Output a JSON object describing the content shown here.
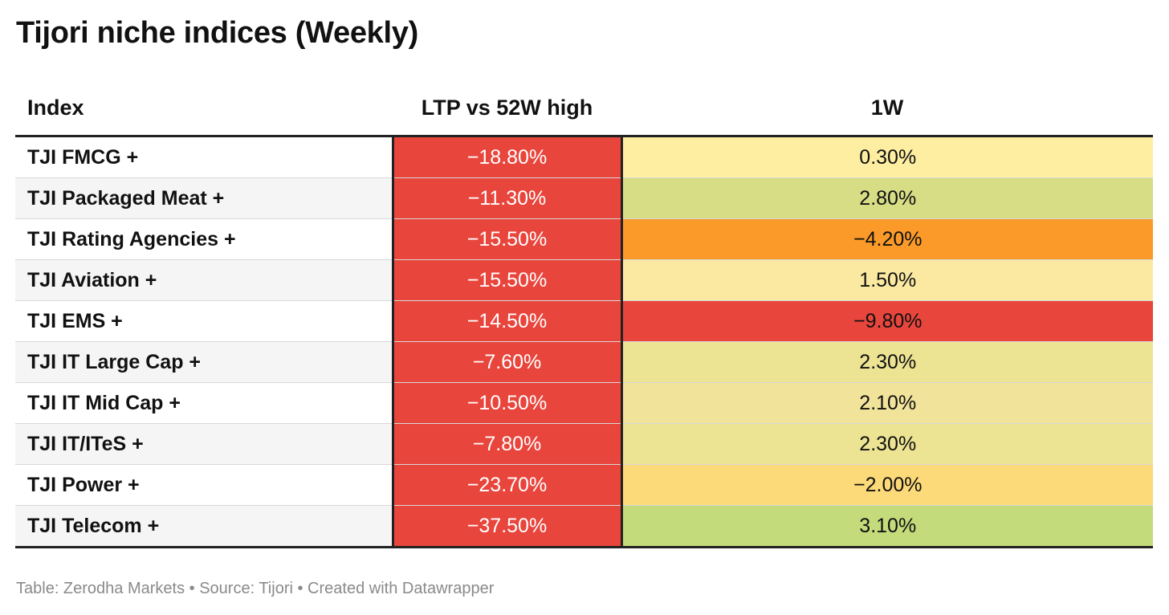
{
  "title": "Tijori niche indices (Weekly)",
  "footer": "Table: Zerodha Markets • Source: Tijori • Created with Datawrapper",
  "chart_data": {
    "type": "table",
    "columns": [
      "Index",
      "LTP vs 52W high",
      "1W"
    ],
    "rows": [
      {
        "index": "TJI FMCG +",
        "ltp_vs_52w_high": "−18.80%",
        "ltp_color": "#e8453c",
        "one_week": "0.30%",
        "wk_color": "#fdeea1"
      },
      {
        "index": "TJI Packaged Meat +",
        "ltp_vs_52w_high": "−11.30%",
        "ltp_color": "#e8453c",
        "one_week": "2.80%",
        "wk_color": "#d6dd85"
      },
      {
        "index": "TJI Rating Agencies +",
        "ltp_vs_52w_high": "−15.50%",
        "ltp_color": "#e8453c",
        "one_week": "−4.20%",
        "wk_color": "#fb9a29"
      },
      {
        "index": "TJI Aviation +",
        "ltp_vs_52w_high": "−15.50%",
        "ltp_color": "#e8453c",
        "one_week": "1.50%",
        "wk_color": "#fbe9a2"
      },
      {
        "index": "TJI EMS +",
        "ltp_vs_52w_high": "−14.50%",
        "ltp_color": "#e8453c",
        "one_week": "−9.80%",
        "wk_color": "#e8453c"
      },
      {
        "index": "TJI IT Large Cap +",
        "ltp_vs_52w_high": "−7.60%",
        "ltp_color": "#e8453c",
        "one_week": "2.30%",
        "wk_color": "#ece393"
      },
      {
        "index": "TJI IT Mid Cap +",
        "ltp_vs_52w_high": "−10.50%",
        "ltp_color": "#e8453c",
        "one_week": "2.10%",
        "wk_color": "#f1e39a"
      },
      {
        "index": "TJI IT/ITeS +",
        "ltp_vs_52w_high": "−7.80%",
        "ltp_color": "#e8453c",
        "one_week": "2.30%",
        "wk_color": "#ece393"
      },
      {
        "index": "TJI Power +",
        "ltp_vs_52w_high": "−23.70%",
        "ltp_color": "#e8453c",
        "one_week": "−2.00%",
        "wk_color": "#fdda79"
      },
      {
        "index": "TJI Telecom +",
        "ltp_vs_52w_high": "−37.50%",
        "ltp_color": "#e8453c",
        "one_week": "3.10%",
        "wk_color": "#c3db7a"
      }
    ]
  }
}
